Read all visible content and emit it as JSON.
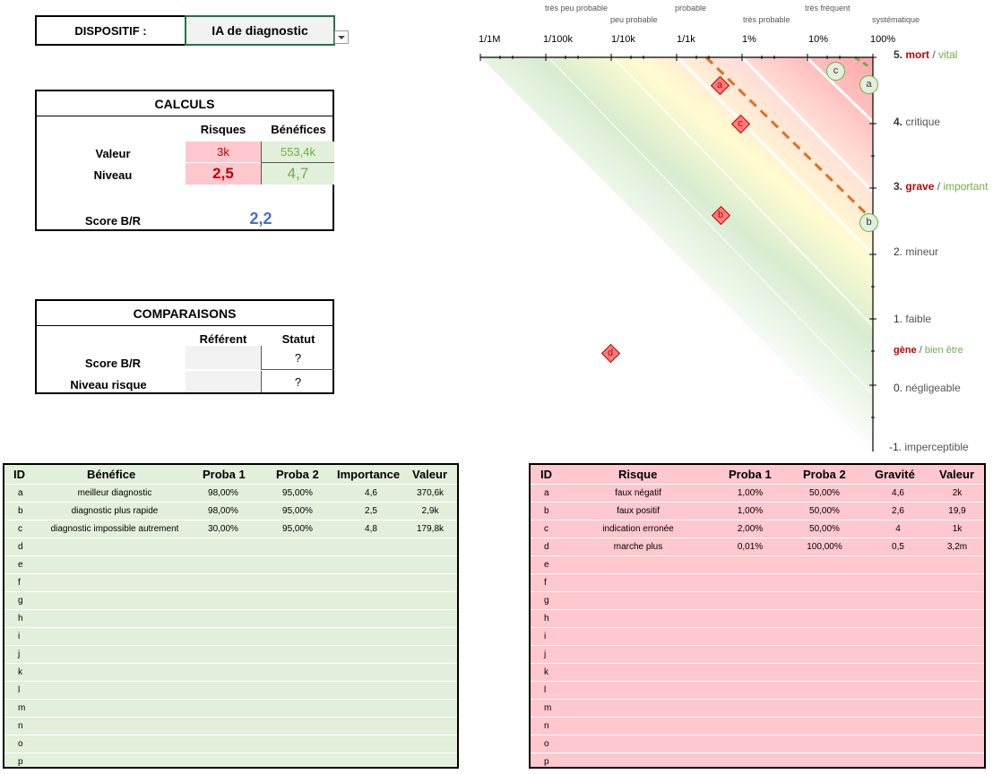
{
  "dispositif": {
    "label": "DISPOSITIF :",
    "value": "IA de diagnostic"
  },
  "calculs": {
    "title": "CALCULS",
    "col_risques": "Risques",
    "col_benefices": "Bénéfices",
    "row_valeur": "Valeur",
    "row_niveau": "Niveau",
    "valeur_risques": "3k",
    "valeur_benefices": "553,4k",
    "niveau_risques": "2,5",
    "niveau_benefices": "4,7",
    "score_label": "Score B/R",
    "score_value": "2,2"
  },
  "comparaisons": {
    "title": "COMPARAISONS",
    "col_referent": "Référent",
    "col_statut": "Statut",
    "row_score": "Score B/R",
    "row_niveau": "Niveau risque",
    "statut_score": "?",
    "statut_niveau": "?"
  },
  "chart": {
    "top_labels_row1": [
      "très peu probable",
      "probable",
      "très fréquent"
    ],
    "top_labels_row2": [
      "peu probable",
      "très probable",
      "systématique"
    ],
    "x_ticks": [
      "1/1M",
      "1/100k",
      "1/10k",
      "1/1k",
      "1%",
      "10%",
      "100%"
    ],
    "y_levels": [
      {
        "num": "5.",
        "a": "mort",
        "sep": "/",
        "b": "vital"
      },
      {
        "num": "4.",
        "a": "critique"
      },
      {
        "num": "3.",
        "a": "grave",
        "sep": "/",
        "b": "important"
      },
      {
        "num": "2.",
        "a": "mineur"
      },
      {
        "num": "1.",
        "a": "faible"
      },
      {
        "num": "",
        "a": "gène",
        "sep": "/",
        "b": "bien être"
      },
      {
        "num": "0.",
        "a": "négligeable"
      },
      {
        "num": "-1.",
        "a": "imperceptible"
      }
    ],
    "risk_markers": [
      "a",
      "b",
      "c",
      "d"
    ],
    "benefit_markers": [
      "a",
      "b",
      "c"
    ]
  },
  "benefices": {
    "headers": [
      "ID",
      "Bénéfice",
      "Proba 1",
      "Proba 2",
      "Importance",
      "Valeur"
    ],
    "rows": [
      [
        "a",
        "meilleur diagnostic",
        "98,00%",
        "95,00%",
        "4,6",
        "370,6k"
      ],
      [
        "b",
        "diagnostic plus rapide",
        "98,00%",
        "95,00%",
        "2,5",
        "2,9k"
      ],
      [
        "c",
        "diagnostic impossible autrement",
        "30,00%",
        "95,00%",
        "4,8",
        "179,8k"
      ],
      [
        "d",
        "",
        "",
        "",
        "",
        ""
      ],
      [
        "e",
        "",
        "",
        "",
        "",
        ""
      ],
      [
        "f",
        "",
        "",
        "",
        "",
        ""
      ],
      [
        "g",
        "",
        "",
        "",
        "",
        ""
      ],
      [
        "h",
        "",
        "",
        "",
        "",
        ""
      ],
      [
        "i",
        "",
        "",
        "",
        "",
        ""
      ],
      [
        "j",
        "",
        "",
        "",
        "",
        ""
      ],
      [
        "k",
        "",
        "",
        "",
        "",
        ""
      ],
      [
        "l",
        "",
        "",
        "",
        "",
        ""
      ],
      [
        "m",
        "",
        "",
        "",
        "",
        ""
      ],
      [
        "n",
        "",
        "",
        "",
        "",
        ""
      ],
      [
        "o",
        "",
        "",
        "",
        "",
        ""
      ],
      [
        "p",
        "",
        "",
        "",
        "",
        ""
      ]
    ]
  },
  "risques": {
    "headers": [
      "ID",
      "Risque",
      "Proba 1",
      "Proba 2",
      "Gravité",
      "Valeur"
    ],
    "rows": [
      [
        "a",
        "faux négatif",
        "1,00%",
        "50,00%",
        "4,6",
        "2k"
      ],
      [
        "b",
        "faux positif",
        "1,00%",
        "50,00%",
        "2,6",
        "19,9"
      ],
      [
        "c",
        "indication erronée",
        "2,00%",
        "50,00%",
        "4",
        "1k"
      ],
      [
        "d",
        "marche plus",
        "0,01%",
        "100,00%",
        "0,5",
        "3,2m"
      ],
      [
        "e",
        "",
        "",
        "",
        "",
        ""
      ],
      [
        "f",
        "",
        "",
        "",
        "",
        ""
      ],
      [
        "g",
        "",
        "",
        "",
        "",
        ""
      ],
      [
        "h",
        "",
        "",
        "",
        "",
        ""
      ],
      [
        "i",
        "",
        "",
        "",
        "",
        ""
      ],
      [
        "j",
        "",
        "",
        "",
        "",
        ""
      ],
      [
        "k",
        "",
        "",
        "",
        "",
        ""
      ],
      [
        "l",
        "",
        "",
        "",
        "",
        ""
      ],
      [
        "m",
        "",
        "",
        "",
        "",
        ""
      ],
      [
        "n",
        "",
        "",
        "",
        "",
        ""
      ],
      [
        "o",
        "",
        "",
        "",
        "",
        ""
      ],
      [
        "p",
        "",
        "",
        "",
        "",
        ""
      ]
    ]
  },
  "colors": {
    "risk_red": "#c00000",
    "benefit_green": "#70ad47",
    "score_blue": "#4472c4",
    "risk_cell_bg": "#ffc7ce",
    "benefit_cell_bg": "#e2efda",
    "risk_table_bg": "#ffc7ce",
    "benefit_table_bg": "#e2efda",
    "dashed_orange": "#e07020"
  }
}
